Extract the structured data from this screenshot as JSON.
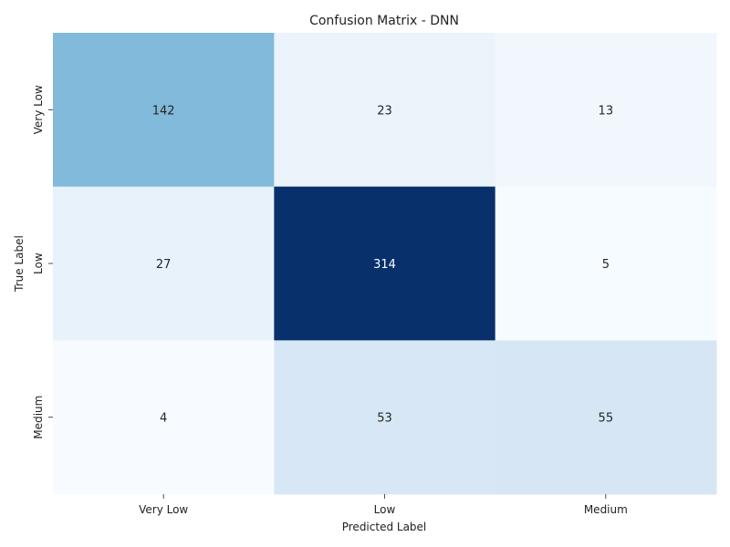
{
  "chart_data": {
    "type": "heatmap",
    "title": "Confusion Matrix - DNN",
    "xlabel": "Predicted Label",
    "ylabel": "True Label",
    "x_categories": [
      "Very Low",
      "Low",
      "Medium"
    ],
    "y_categories": [
      "Very Low",
      "Low",
      "Medium"
    ],
    "values": [
      [
        142,
        23,
        13
      ],
      [
        27,
        314,
        5
      ],
      [
        4,
        53,
        55
      ]
    ],
    "colormap": "Blues",
    "colorbar": false,
    "grid": false,
    "value_range": [
      4,
      314
    ]
  }
}
